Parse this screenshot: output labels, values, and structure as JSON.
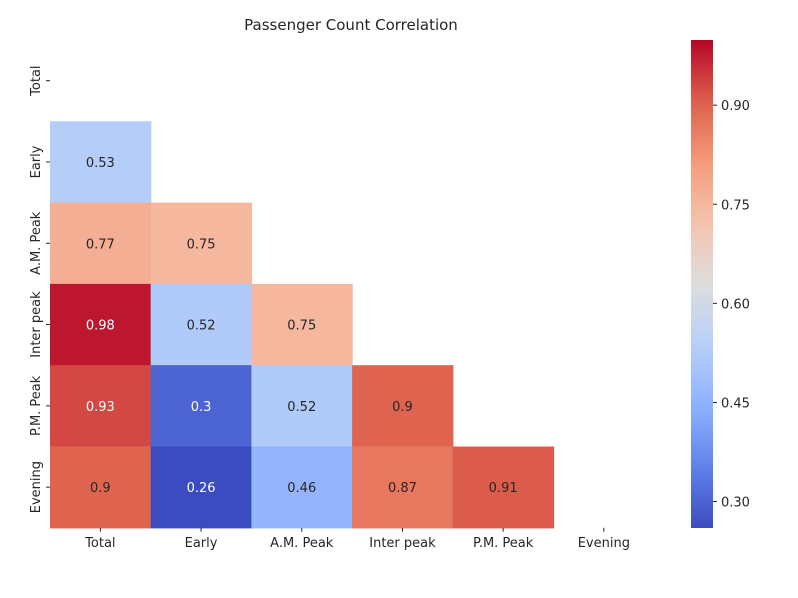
{
  "chart_data": {
    "type": "heatmap",
    "title": "Passenger Count Correlation",
    "x_labels": [
      "Total",
      "Early",
      "A.M. Peak",
      "Inter peak",
      "P.M. Peak",
      "Evening"
    ],
    "y_labels": [
      "Total",
      "Early",
      "A.M. Peak",
      "Inter peak",
      "P.M. Peak",
      "Evening"
    ],
    "mask": "upper triangle incl. diagonal",
    "values": [
      [
        null,
        null,
        null,
        null,
        null,
        null
      ],
      [
        0.53,
        null,
        null,
        null,
        null,
        null
      ],
      [
        0.77,
        0.75,
        null,
        null,
        null,
        null
      ],
      [
        0.98,
        0.52,
        0.75,
        null,
        null,
        null
      ],
      [
        0.93,
        0.3,
        0.52,
        0.9,
        null,
        null
      ],
      [
        0.9,
        0.26,
        0.46,
        0.87,
        0.91,
        null
      ]
    ],
    "display_values": [
      [
        null,
        null,
        null,
        null,
        null,
        null
      ],
      [
        "0.53",
        null,
        null,
        null,
        null,
        null
      ],
      [
        "0.77",
        "0.75",
        null,
        null,
        null,
        null
      ],
      [
        "0.98",
        "0.52",
        "0.75",
        null,
        null,
        null
      ],
      [
        "0.93",
        "0.3",
        "0.52",
        "0.9",
        null,
        null
      ],
      [
        "0.9",
        "0.26",
        "0.46",
        "0.87",
        "0.91",
        null
      ]
    ],
    "colormap": "coolwarm",
    "vmin": 0.26,
    "vmax": 0.9986,
    "colorbar_ticks": [
      0.3,
      0.45,
      0.6,
      0.75,
      0.9
    ],
    "colorbar_tick_labels": [
      "0.30",
      "0.45",
      "0.60",
      "0.75",
      "0.90"
    ]
  }
}
